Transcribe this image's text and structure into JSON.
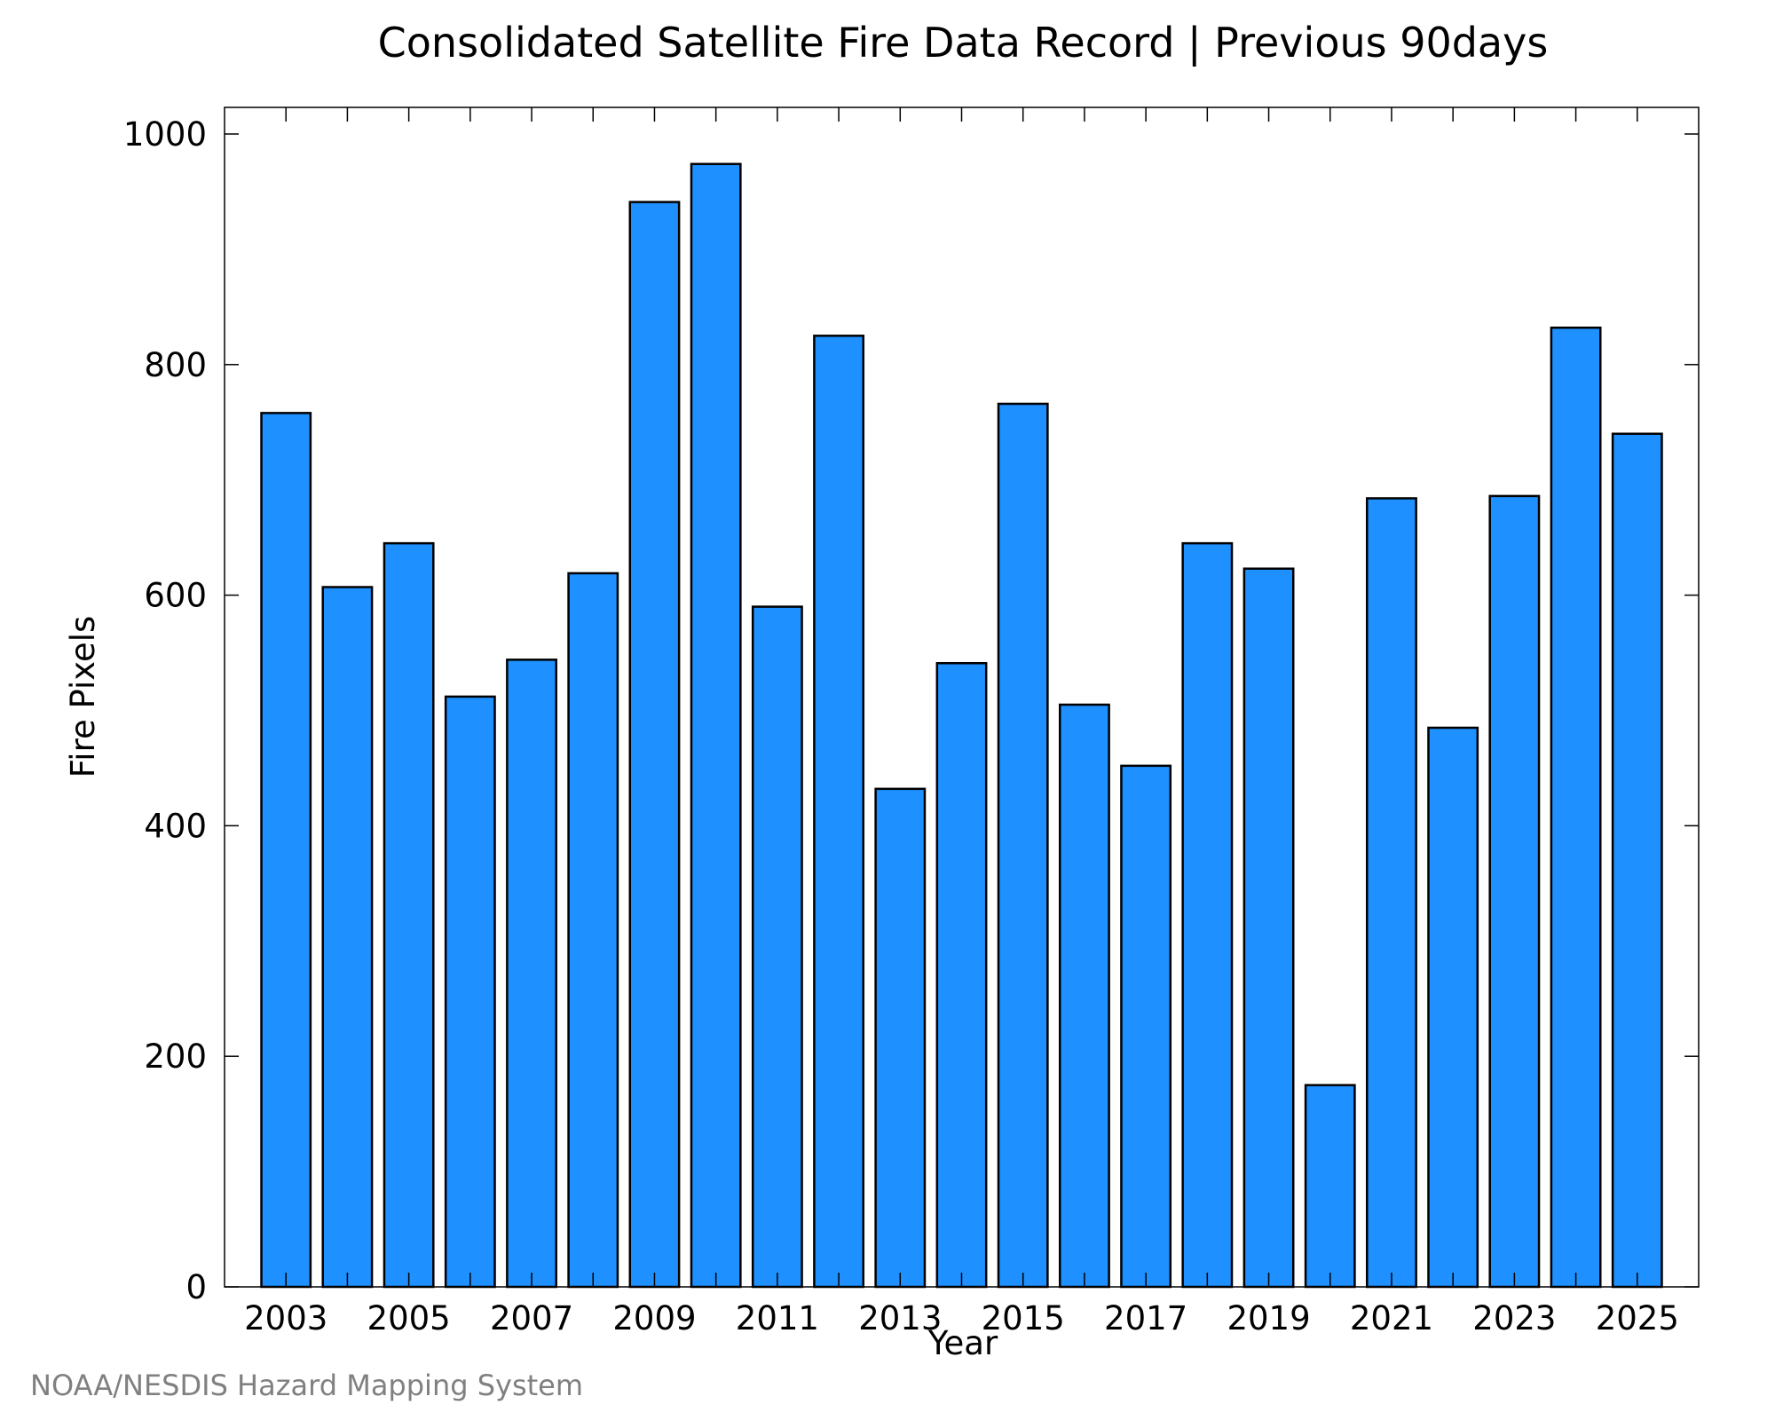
{
  "chart_data": {
    "type": "bar",
    "title": "Consolidated Satellite Fire Data Record | Previous 90days",
    "xlabel": "Year",
    "ylabel": "Fire Pixels",
    "credit": "NOAA/NESDIS Hazard Mapping System",
    "categories": [
      2003,
      2004,
      2005,
      2006,
      2007,
      2008,
      2009,
      2010,
      2011,
      2012,
      2013,
      2014,
      2015,
      2016,
      2017,
      2018,
      2019,
      2020,
      2021,
      2022,
      2023,
      2024,
      2025
    ],
    "values": [
      758,
      607,
      645,
      512,
      544,
      619,
      941,
      974,
      590,
      825,
      432,
      541,
      766,
      505,
      452,
      645,
      623,
      175,
      684,
      485,
      686,
      832,
      740
    ],
    "x_tick_labels": [
      "2003",
      "2005",
      "2007",
      "2009",
      "2011",
      "2013",
      "2015",
      "2017",
      "2019",
      "2021",
      "2023",
      "2025"
    ],
    "y_ticks": [
      0,
      200,
      400,
      600,
      800,
      1000
    ],
    "ylim": [
      0,
      1000
    ],
    "bar_color": "#1e90ff",
    "bar_edge_color": "#000000",
    "grid": false,
    "legend": "none"
  }
}
